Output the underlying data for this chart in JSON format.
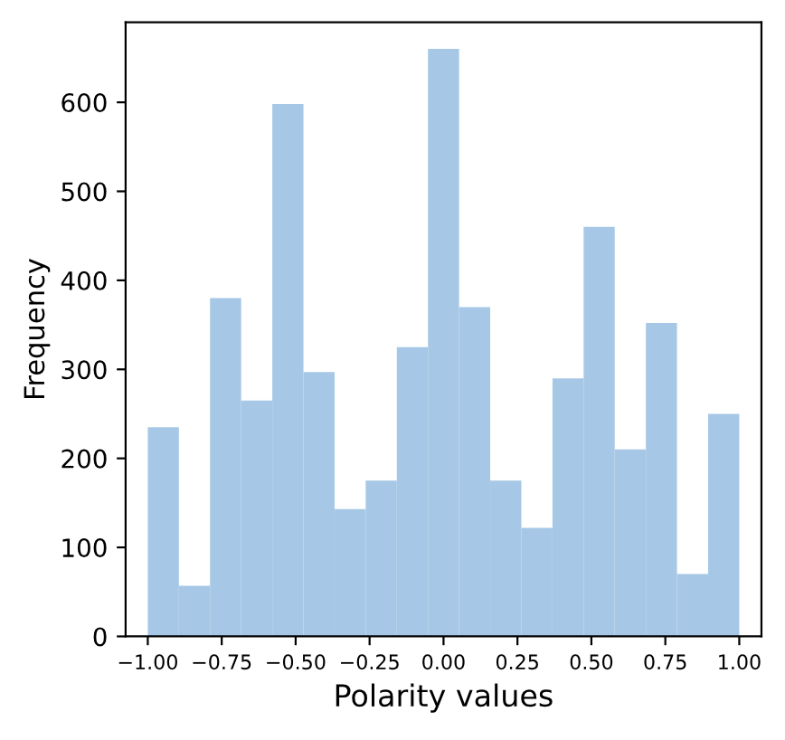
{
  "chart_data": {
    "type": "histogram",
    "xlabel": "Polarity values",
    "ylabel": "Frequency",
    "bins": [
      -1.0,
      -0.8947,
      -0.7895,
      -0.6842,
      -0.5789,
      -0.4737,
      -0.3684,
      -0.2632,
      -0.1579,
      -0.0526,
      0.0526,
      0.1579,
      0.2632,
      0.3684,
      0.4737,
      0.5789,
      0.6842,
      0.7895,
      0.8947,
      1.0
    ],
    "values": [
      235,
      57,
      380,
      265,
      598,
      297,
      143,
      175,
      325,
      660,
      370,
      175,
      122,
      290,
      460,
      210,
      352,
      70,
      250
    ],
    "color": "#a6c8e6",
    "xlim": [
      -1.075,
      1.075
    ],
    "ylim": [
      0,
      690
    ],
    "xticks": [
      {
        "value": -1,
        "label": "−1.00"
      },
      {
        "value": -0.75,
        "label": "−0.75"
      },
      {
        "value": -0.5,
        "label": "−0.50"
      },
      {
        "value": -0.25,
        "label": "−0.25"
      },
      {
        "value": 0,
        "label": "0.00"
      },
      {
        "value": 0.25,
        "label": "0.25"
      },
      {
        "value": 0.5,
        "label": "0.50"
      },
      {
        "value": 0.75,
        "label": "0.75"
      },
      {
        "value": 1,
        "label": "1.00"
      }
    ],
    "yticks": [
      0,
      100,
      200,
      300,
      400,
      500,
      600
    ],
    "grid": false,
    "legend": false
  }
}
